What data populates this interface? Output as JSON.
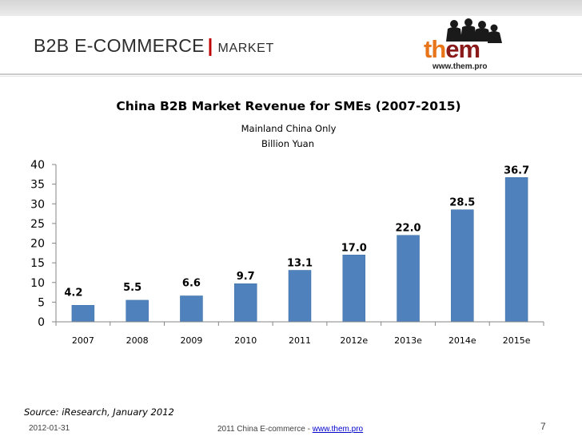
{
  "header": {
    "title_main": "B2B E-COMMERCE",
    "separator": "|",
    "title_sub": "MARKET",
    "logo_text_a": "th",
    "logo_text_b": "em",
    "logo_url": "www.them.pro"
  },
  "colors": {
    "bar": "#4f81bd",
    "bar_stroke": "#3a6ea5",
    "logo_orange": "#e8751a",
    "logo_maroon": "#8b1a1a",
    "accent_red": "#c00000",
    "link_blue": "#0000cc"
  },
  "chart_data": {
    "type": "bar",
    "title": "China B2B Market Revenue for SMEs (2007-2015)",
    "subtitle": "Mainland China Only",
    "unit_label": "Billion Yuan",
    "categories": [
      "2007",
      "2008",
      "2009",
      "2010",
      "2011",
      "2012e",
      "2013e",
      "2014e",
      "2015e"
    ],
    "values": [
      4.2,
      5.5,
      6.6,
      9.7,
      13.1,
      17.0,
      22.0,
      28.5,
      36.7
    ],
    "value_labels": [
      "4.2",
      "5.5",
      "6.6",
      "9.7",
      "13.1",
      "17.0",
      "22.0",
      "28.5",
      "36.7"
    ],
    "y_ticks": [
      0,
      5,
      10,
      15,
      20,
      25,
      30,
      35,
      40
    ],
    "ylim": [
      0,
      40
    ],
    "xlabel": "",
    "ylabel": "",
    "grid": false,
    "legend": false
  },
  "footer": {
    "source": "Source: iResearch, January 2012",
    "date": "2012-01-31",
    "center_text": "2011 China E-commerce - ",
    "center_link": "www.them.pro",
    "page_number": "7"
  }
}
